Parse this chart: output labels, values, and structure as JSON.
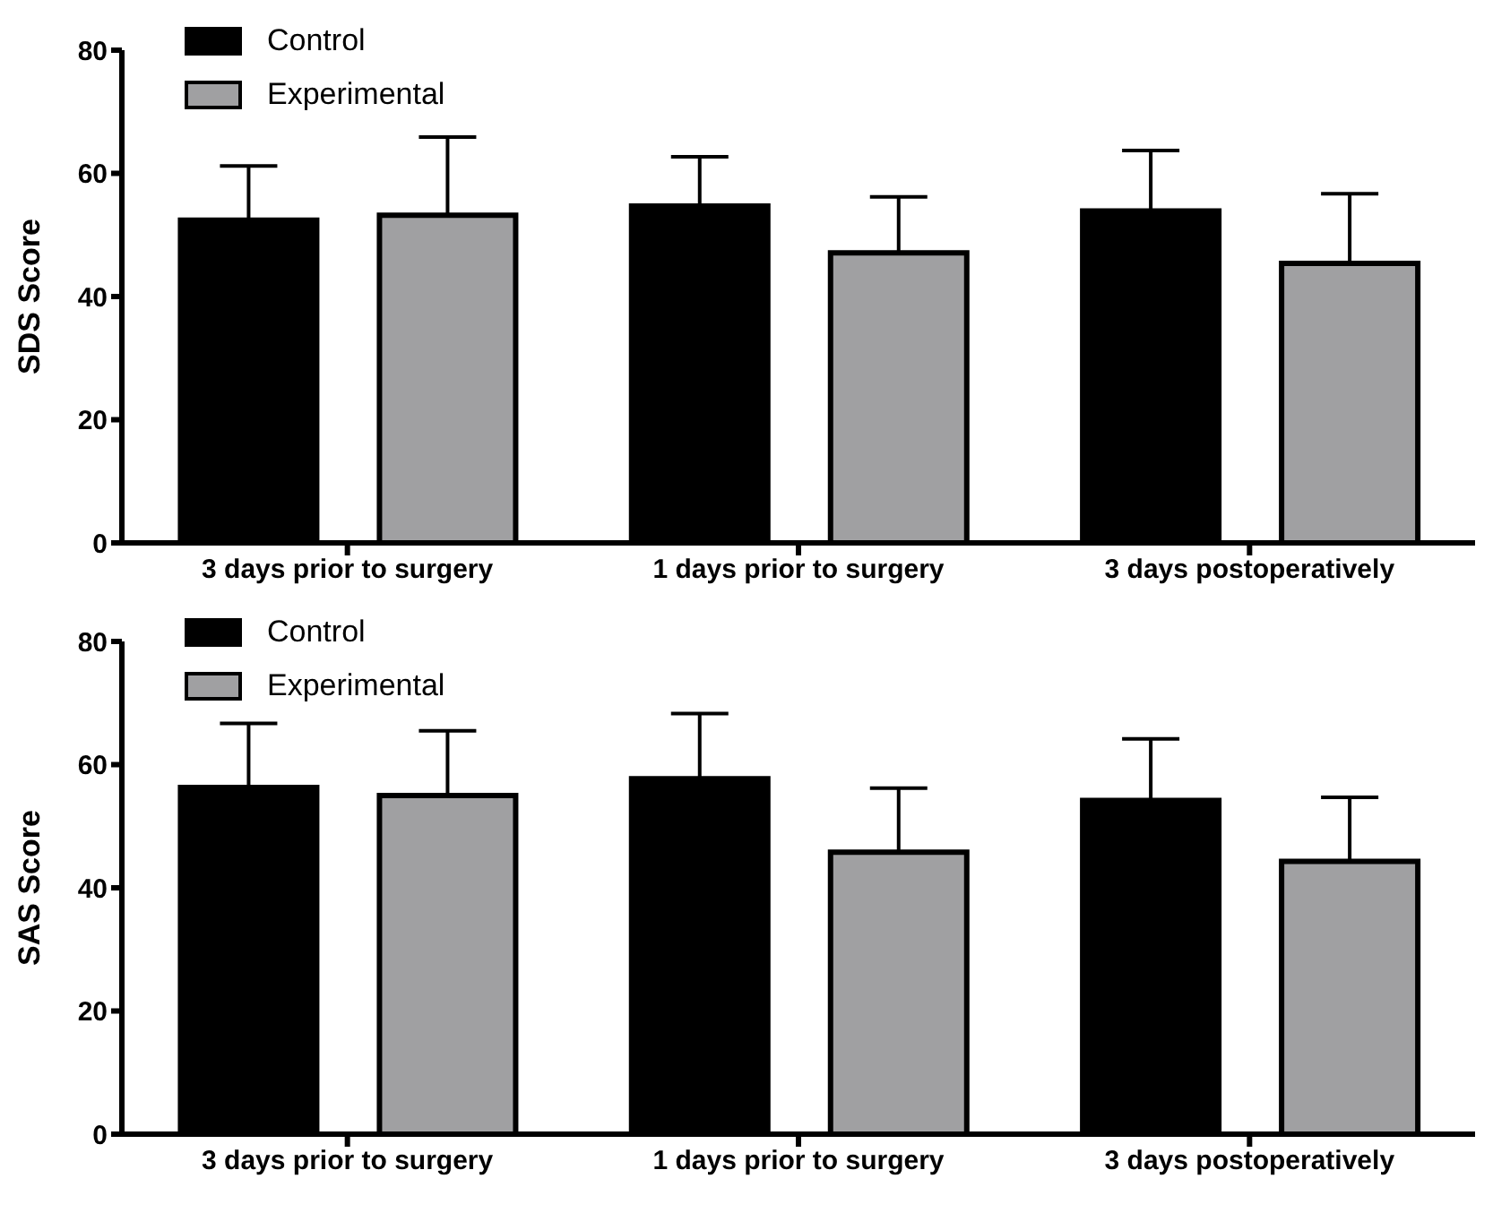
{
  "chart_data": [
    {
      "type": "bar",
      "ylabel": "SDS Score",
      "categories": [
        "3 days prior to surgery",
        "1 days prior to surgery",
        "3 days postoperatively"
      ],
      "ylim": [
        0,
        80
      ],
      "yticks": [
        0,
        20,
        40,
        60,
        80
      ],
      "grid": false,
      "legend": "top left",
      "series": [
        {
          "name": "Control",
          "color": "#000000",
          "values": [
            52.4,
            54.7,
            53.9
          ],
          "errors": [
            [
              52.4,
              61.2
            ],
            [
              54.7,
              62.7
            ],
            [
              53.9,
              63.7
            ]
          ]
        },
        {
          "name": "Experimental",
          "color": "#a0a0a2",
          "values": [
            53.2,
            47.1,
            45.4
          ],
          "errors": [
            [
              53.2,
              65.9
            ],
            [
              47.1,
              56.2
            ],
            [
              45.4,
              56.7
            ]
          ]
        }
      ]
    },
    {
      "type": "bar",
      "ylabel": "SAS Score",
      "categories": [
        "3 days prior to surgery",
        "1 days prior to surgery",
        "3 days postoperatively"
      ],
      "ylim": [
        0,
        80
      ],
      "yticks": [
        0,
        20,
        40,
        60,
        80
      ],
      "grid": false,
      "legend": "top left",
      "series": [
        {
          "name": "Control",
          "color": "#000000",
          "values": [
            56.3,
            57.7,
            54.2
          ],
          "errors": [
            [
              56.3,
              66.7
            ],
            [
              57.7,
              68.3
            ],
            [
              54.2,
              64.2
            ]
          ]
        },
        {
          "name": "Experimental",
          "color": "#a0a0a2",
          "values": [
            55.0,
            45.8,
            44.3
          ],
          "errors": [
            [
              55.0,
              65.5
            ],
            [
              45.8,
              56.2
            ],
            [
              44.3,
              54.7
            ]
          ]
        }
      ]
    }
  ]
}
